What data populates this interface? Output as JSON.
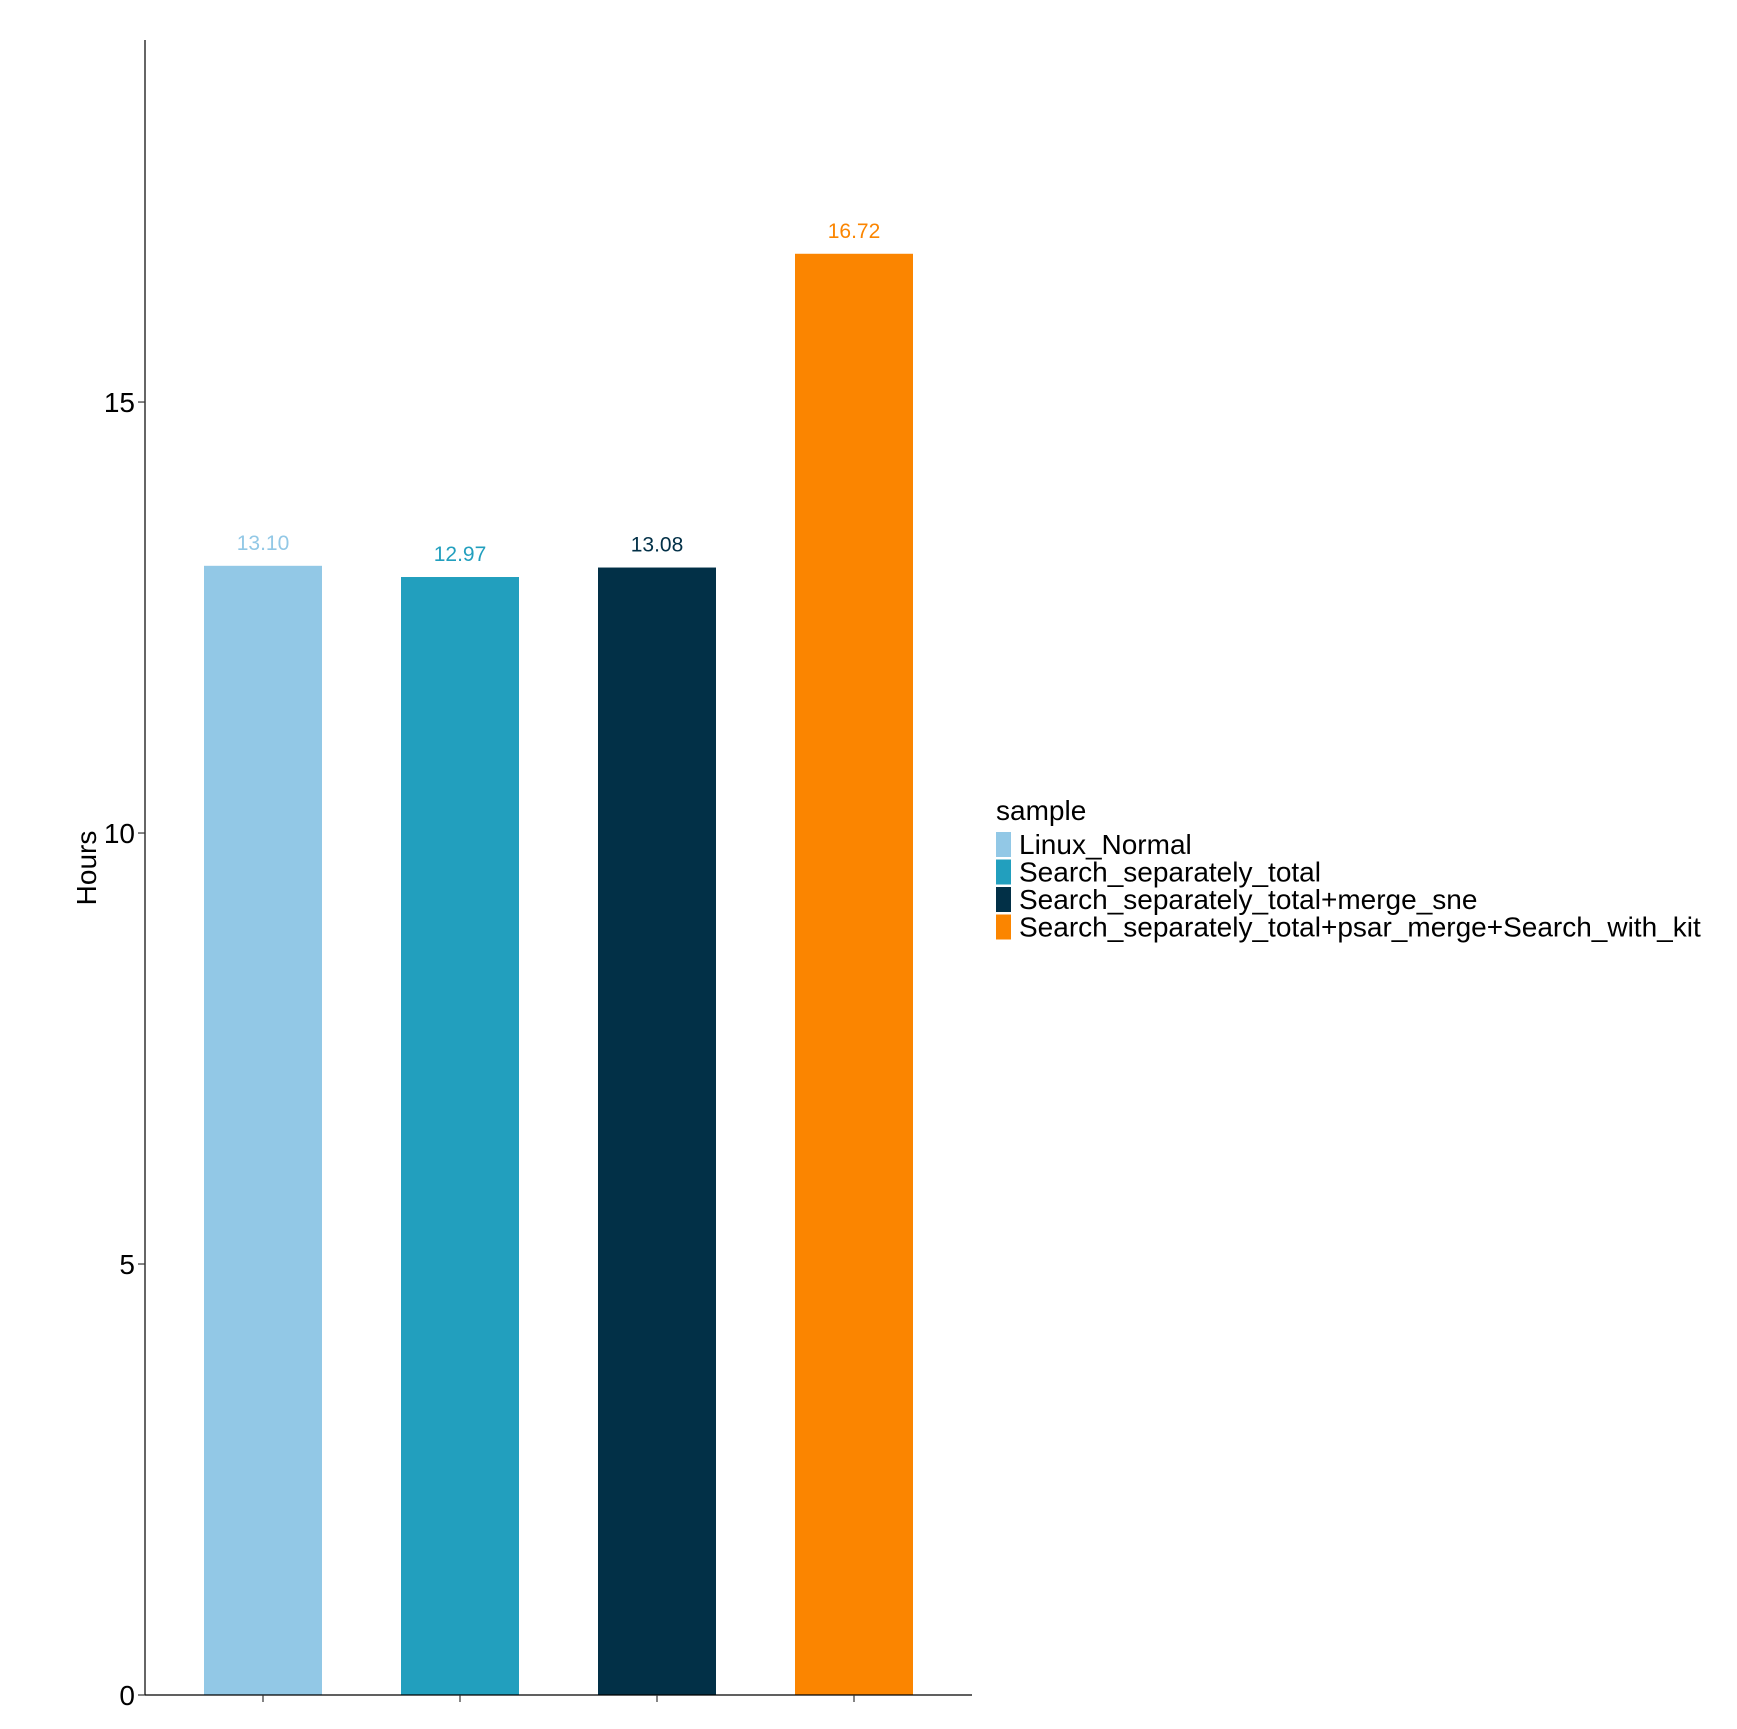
{
  "chart_data": {
    "type": "bar",
    "categories": [
      "Linux_Normal",
      "Search_separately_total",
      "Search_separately_total+merge_sne",
      "Search_separately_total+psar_merge+Search_with_kit"
    ],
    "values": [
      13.1,
      12.97,
      13.08,
      16.72
    ],
    "data_labels": [
      "13.10",
      "12.97",
      "13.08",
      "16.72"
    ],
    "colors": [
      "#92c8e6",
      "#229fbe",
      "#023047",
      "#fb8500"
    ],
    "ylabel": "Hours",
    "yticks": [
      0,
      5,
      10,
      15
    ],
    "ylim": [
      0,
      19.2
    ],
    "grid": false,
    "legend": {
      "title": "sample",
      "placement": "right",
      "entries": [
        "Linux_Normal",
        "Search_separately_total",
        "Search_separately_total+merge_sne",
        "Search_separately_total+psar_merge+Search_with_kit"
      ]
    }
  }
}
